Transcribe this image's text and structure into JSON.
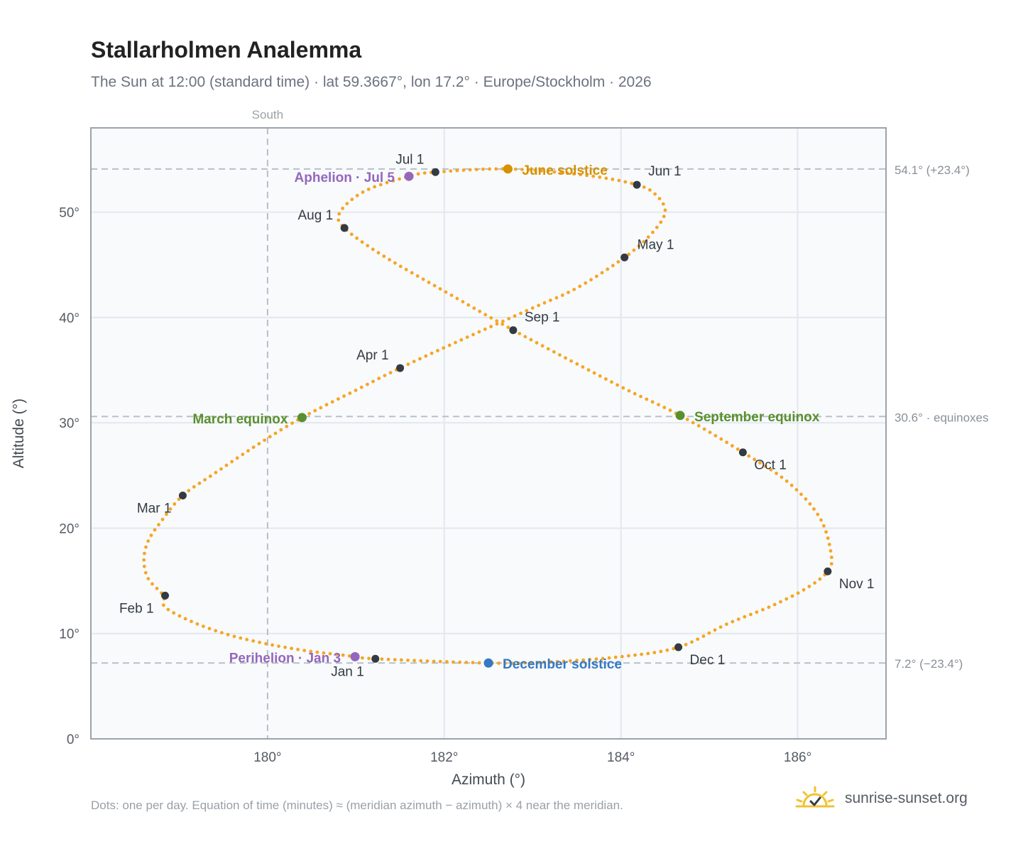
{
  "header": {
    "title": "Stallarholmen Analemma",
    "subtitle": "The Sun at 12:00 (standard time) · lat 59.3667°, lon 17.2° · Europe/Stockholm · 2026"
  },
  "footer": {
    "note": "Dots: one per day. Equation of time (minutes) ≈ (meridian azimuth − azimuth) × 4 near the meridian.",
    "brand": "sunrise-sunset.org",
    "brand_icon": "sun-check-icon"
  },
  "colors": {
    "curve": "#f5a623",
    "month_marker": "#333a42",
    "equinox": "#5a8f2e",
    "june_solstice": "#d69200",
    "december_solstice": "#3579c4",
    "apsis": "#9467bd",
    "reference_line": "#b7c0c8",
    "plot_bg": "#f8fafc",
    "grid": "#e3e8ee",
    "frame": "#9aa3ad",
    "axis_text": "#555b63"
  },
  "chart_data": {
    "type": "scatter",
    "xlabel": "Azimuth (°)",
    "ylabel": "Altitude (°)",
    "xlim": [
      178.0,
      187.0
    ],
    "ylim": [
      0,
      58
    ],
    "x_ticks": [
      180,
      182,
      184,
      186
    ],
    "x_tick_labels": [
      "180°",
      "182°",
      "184°",
      "186°"
    ],
    "y_ticks": [
      0,
      10,
      20,
      30,
      40,
      50
    ],
    "y_tick_labels": [
      "0°",
      "10°",
      "20°",
      "30°",
      "40°",
      "50°"
    ],
    "grid": true,
    "meridian": {
      "azimuth": 180,
      "label": "South"
    },
    "reference_lines": [
      {
        "altitude": 54.1,
        "label": "54.1° (+23.4°)"
      },
      {
        "altitude": 30.6,
        "label": "30.6° · equinoxes"
      },
      {
        "altitude": 7.2,
        "label": "7.2° (−23.4°)"
      }
    ],
    "analemma_path": [
      [
        181.22,
        7.6
      ],
      [
        180.9,
        7.9
      ],
      [
        180.45,
        8.35
      ],
      [
        180.0,
        9.0
      ],
      [
        179.55,
        9.9
      ],
      [
        179.15,
        11.1
      ],
      [
        178.84,
        12.5
      ],
      [
        178.82,
        13.6
      ],
      [
        178.65,
        15.2
      ],
      [
        178.6,
        17.0
      ],
      [
        178.65,
        18.8
      ],
      [
        178.8,
        20.7
      ],
      [
        179.04,
        23.1
      ],
      [
        179.4,
        25.2
      ],
      [
        179.9,
        28.0
      ],
      [
        180.39,
        30.5
      ],
      [
        181.0,
        33.1
      ],
      [
        181.5,
        35.2
      ],
      [
        182.2,
        37.9
      ],
      [
        183.0,
        40.9
      ],
      [
        183.5,
        42.8
      ],
      [
        184.04,
        45.7
      ],
      [
        184.35,
        48.0
      ],
      [
        184.5,
        50.0
      ],
      [
        184.4,
        51.6
      ],
      [
        184.18,
        52.6
      ],
      [
        183.6,
        53.5
      ],
      [
        182.72,
        54.1
      ],
      [
        181.9,
        53.8
      ],
      [
        181.6,
        53.4
      ],
      [
        181.1,
        52.0
      ],
      [
        180.82,
        50.0
      ],
      [
        180.87,
        48.5
      ],
      [
        181.3,
        45.9
      ],
      [
        182.0,
        42.5
      ],
      [
        182.78,
        38.8
      ],
      [
        183.5,
        35.6
      ],
      [
        184.1,
        33.0
      ],
      [
        184.67,
        30.7
      ],
      [
        185.38,
        27.2
      ],
      [
        185.9,
        24.3
      ],
      [
        186.25,
        21.0
      ],
      [
        186.38,
        17.5
      ],
      [
        186.34,
        15.9
      ],
      [
        186.1,
        14.3
      ],
      [
        185.7,
        12.6
      ],
      [
        185.2,
        10.9
      ],
      [
        184.65,
        8.7
      ],
      [
        184.0,
        7.8
      ],
      [
        183.2,
        7.3
      ],
      [
        182.5,
        7.2
      ],
      [
        181.22,
        7.6
      ]
    ],
    "month_markers": [
      {
        "label": "Jan 1",
        "az": 181.22,
        "alt": 7.6
      },
      {
        "label": "Feb 1",
        "az": 178.84,
        "alt": 13.6
      },
      {
        "label": "Mar 1",
        "az": 179.04,
        "alt": 23.1
      },
      {
        "label": "Apr 1",
        "az": 181.5,
        "alt": 35.2
      },
      {
        "label": "May 1",
        "az": 184.04,
        "alt": 45.7
      },
      {
        "label": "Jun 1",
        "az": 184.18,
        "alt": 52.6
      },
      {
        "label": "Jul 1",
        "az": 181.9,
        "alt": 53.8
      },
      {
        "label": "Aug 1",
        "az": 180.87,
        "alt": 48.5
      },
      {
        "label": "Sep 1",
        "az": 182.78,
        "alt": 38.8
      },
      {
        "label": "Oct 1",
        "az": 185.38,
        "alt": 27.2
      },
      {
        "label": "Nov 1",
        "az": 186.34,
        "alt": 15.9
      },
      {
        "label": "Dec 1",
        "az": 184.65,
        "alt": 8.7
      }
    ],
    "events": [
      {
        "label": "March equinox",
        "az": 180.39,
        "alt": 30.5,
        "kind": "equinox"
      },
      {
        "label": "September equinox",
        "az": 184.67,
        "alt": 30.7,
        "kind": "equinox"
      },
      {
        "label": "June solstice",
        "az": 182.72,
        "alt": 54.1,
        "kind": "june_solstice"
      },
      {
        "label": "December solstice",
        "az": 182.5,
        "alt": 7.2,
        "kind": "december_solstice"
      },
      {
        "label": "Aphelion · Jul 5",
        "az": 181.6,
        "alt": 53.4,
        "kind": "apsis"
      },
      {
        "label": "Perihelion · Jan 3",
        "az": 180.99,
        "alt": 7.8,
        "kind": "apsis"
      }
    ]
  }
}
